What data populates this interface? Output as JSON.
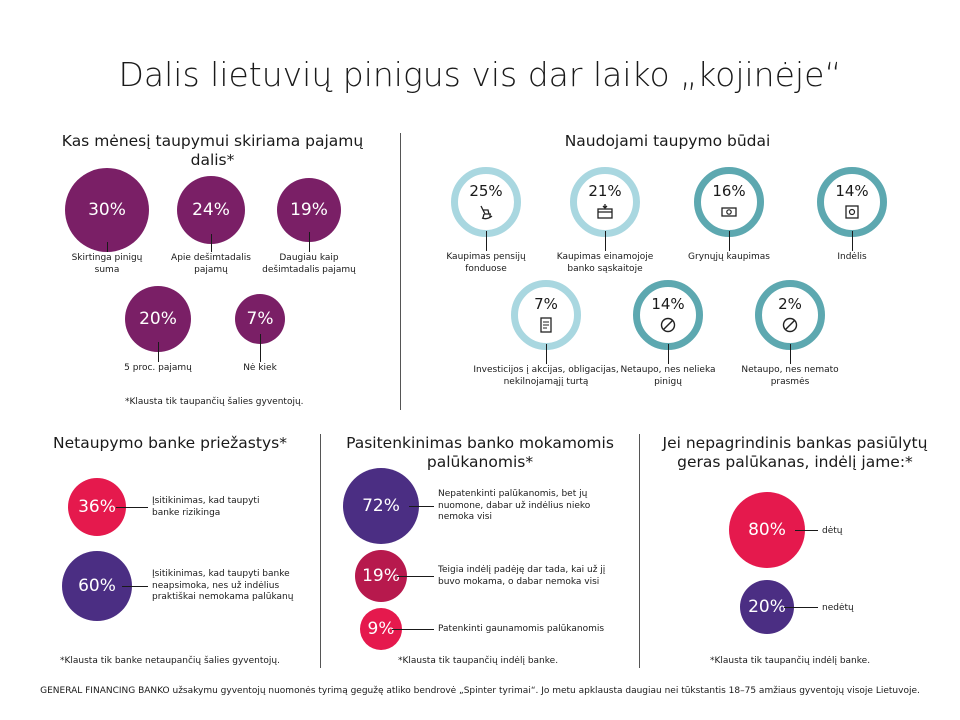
{
  "title": "Dalis lietuvių pinigus vis dar laiko „kojinėje“",
  "colors": {
    "purple": "#7a1f66",
    "dark_purple": "#4b2e83",
    "magenta": "#e5194d",
    "crimson": "#b7194d",
    "teal": "#5da8b0",
    "light_teal": "#a9d7e0"
  },
  "sections": {
    "monthly": {
      "title": "Kas mėnesį taupymui skiriama pajamų dalis*",
      "note": "*Klausta tik taupančių šalies gyventojų."
    },
    "methods": {
      "title": "Naudojami taupymo būdai"
    },
    "reasons": {
      "title": "Netaupymo banke priežastys*",
      "note": "*Klausta tik banke netaupančių šalies gyventojų."
    },
    "satisfaction": {
      "title_line1": "Pasitenkinimas banko mokamomis",
      "title_line2": "palūkanomis*",
      "note": "*Klausta tik taupančių indėlį banke."
    },
    "deposit": {
      "title_line1": "Jei nepagrindinis bankas pasiūlytų",
      "title_line2": "geras palūkanas, indėlį jame:*",
      "note": "*Klausta tik taupančių indėlį banke."
    }
  },
  "footer": "GENERAL FINANCING BANKO užsakymu gyventojų nuomonės tyrimą gegužę atliko bendrovė „Spinter tyrimai“. Jo metu apklausta daugiau nei tūkstantis 18–75 amžiaus gyventojų visoje Lietuvoje.",
  "chart_data": [
    {
      "type": "bubble",
      "title": "Kas mėnesį taupymui skiriama pajamų dalis*",
      "categories": [
        "Skirtinga pinigų suma",
        "Apie dešimtadalis pajamų",
        "Daugiau kaip dešimtadalis pajamų",
        "5 proc. pajamų",
        "Nė kiek"
      ],
      "labels": [
        [
          "Skirtinga pinigų",
          "suma"
        ],
        [
          "Apie dešimtadalis",
          "pajamų"
        ],
        [
          "Daugiau kaip",
          "dešimtadalis pajamų"
        ],
        [
          "5 proc. pajamų"
        ],
        [
          "Nė kiek"
        ]
      ],
      "values": [
        30,
        24,
        19,
        20,
        7
      ],
      "display": [
        "30%",
        "24%",
        "19%",
        "20%",
        "7%"
      ]
    },
    {
      "type": "ring",
      "title": "Naudojami taupymo būdai",
      "categories": [
        "Kaupimas pensijų fonduose",
        "Kaupimas einamojoje banko sąskaitoje",
        "Grynųjų kaupimas",
        "Indėlis",
        "Investicijos į akcijas, obligacijas, nekilnojamąjį turtą",
        "Netaupo, nes nelieka pinigų",
        "Netaupo, nes nemato prasmės"
      ],
      "labels": [
        [
          "Kaupimas pensijų",
          "fonduose"
        ],
        [
          "Kaupimas einamojoje",
          "banko sąskaitoje"
        ],
        [
          "Grynųjų kaupimas"
        ],
        [
          "Indėlis"
        ],
        [
          "Investicijos į akcijas, obligacijas,",
          "nekilnojamąjį turtą"
        ],
        [
          "Netaupo, nes nelieka",
          "pinigų"
        ],
        [
          "Netaupo, nes nemato",
          "prasmės"
        ]
      ],
      "values": [
        25,
        21,
        16,
        14,
        7,
        14,
        2
      ],
      "display": [
        "25%",
        "21%",
        "16%",
        "14%",
        "7%",
        "14%",
        "2%"
      ],
      "icons": [
        "rocking-chair-icon",
        "card-icon",
        "cash-icon",
        "safe-icon",
        "document-icon",
        "no-symbol-icon",
        "no-symbol-icon"
      ]
    },
    {
      "type": "bubble",
      "title": "Netaupymo banke priežastys*",
      "categories": [
        "Įsitikinimas, kad taupyti banke rizikinga",
        "Įsitikinimas, kad taupyti banke neapsimoka, nes už indėlius praktiškai nemokama palūkanų"
      ],
      "labels": [
        [
          "Įsitikinimas, kad taupyti",
          "banke rizikinga"
        ],
        [
          "Įsitikinimas, kad taupyti banke",
          "neapsimoka, nes už indėlius",
          "praktiškai nemokama palūkanų"
        ]
      ],
      "values": [
        36,
        60
      ],
      "display": [
        "36%",
        "60%"
      ]
    },
    {
      "type": "bubble",
      "title": "Pasitenkinimas banko mokamomis palūkanomis*",
      "categories": [
        "Nepatenkinti palūkanomis, bet jų nuomone, dabar už indėlius nieko nemoka visi",
        "Teigia indėlį padėję dar tada, kai už jį buvo mokama, o dabar nemoka visi",
        "Patenkinti gaunamomis palūkanomis"
      ],
      "labels": [
        [
          "Nepatenkinti palūkanomis, bet jų",
          "nuomone, dabar už indėlius nieko",
          "nemoka visi"
        ],
        [
          "Teigia indėlį padėję dar tada, kai už jį",
          "buvo mokama, o dabar nemoka visi"
        ],
        [
          "Patenkinti gaunamomis palūkanomis"
        ]
      ],
      "values": [
        72,
        19,
        9
      ],
      "display": [
        "72%",
        "19%",
        "9%"
      ]
    },
    {
      "type": "bubble",
      "title": "Jei nepagrindinis bankas pasiūlytų geras palūkanas, indėlį jame:*",
      "categories": [
        "dėtų",
        "nedėtų"
      ],
      "labels": [
        [
          "dėtų"
        ],
        [
          "nedėtų"
        ]
      ],
      "values": [
        80,
        20
      ],
      "display": [
        "80%",
        "20%"
      ]
    }
  ]
}
